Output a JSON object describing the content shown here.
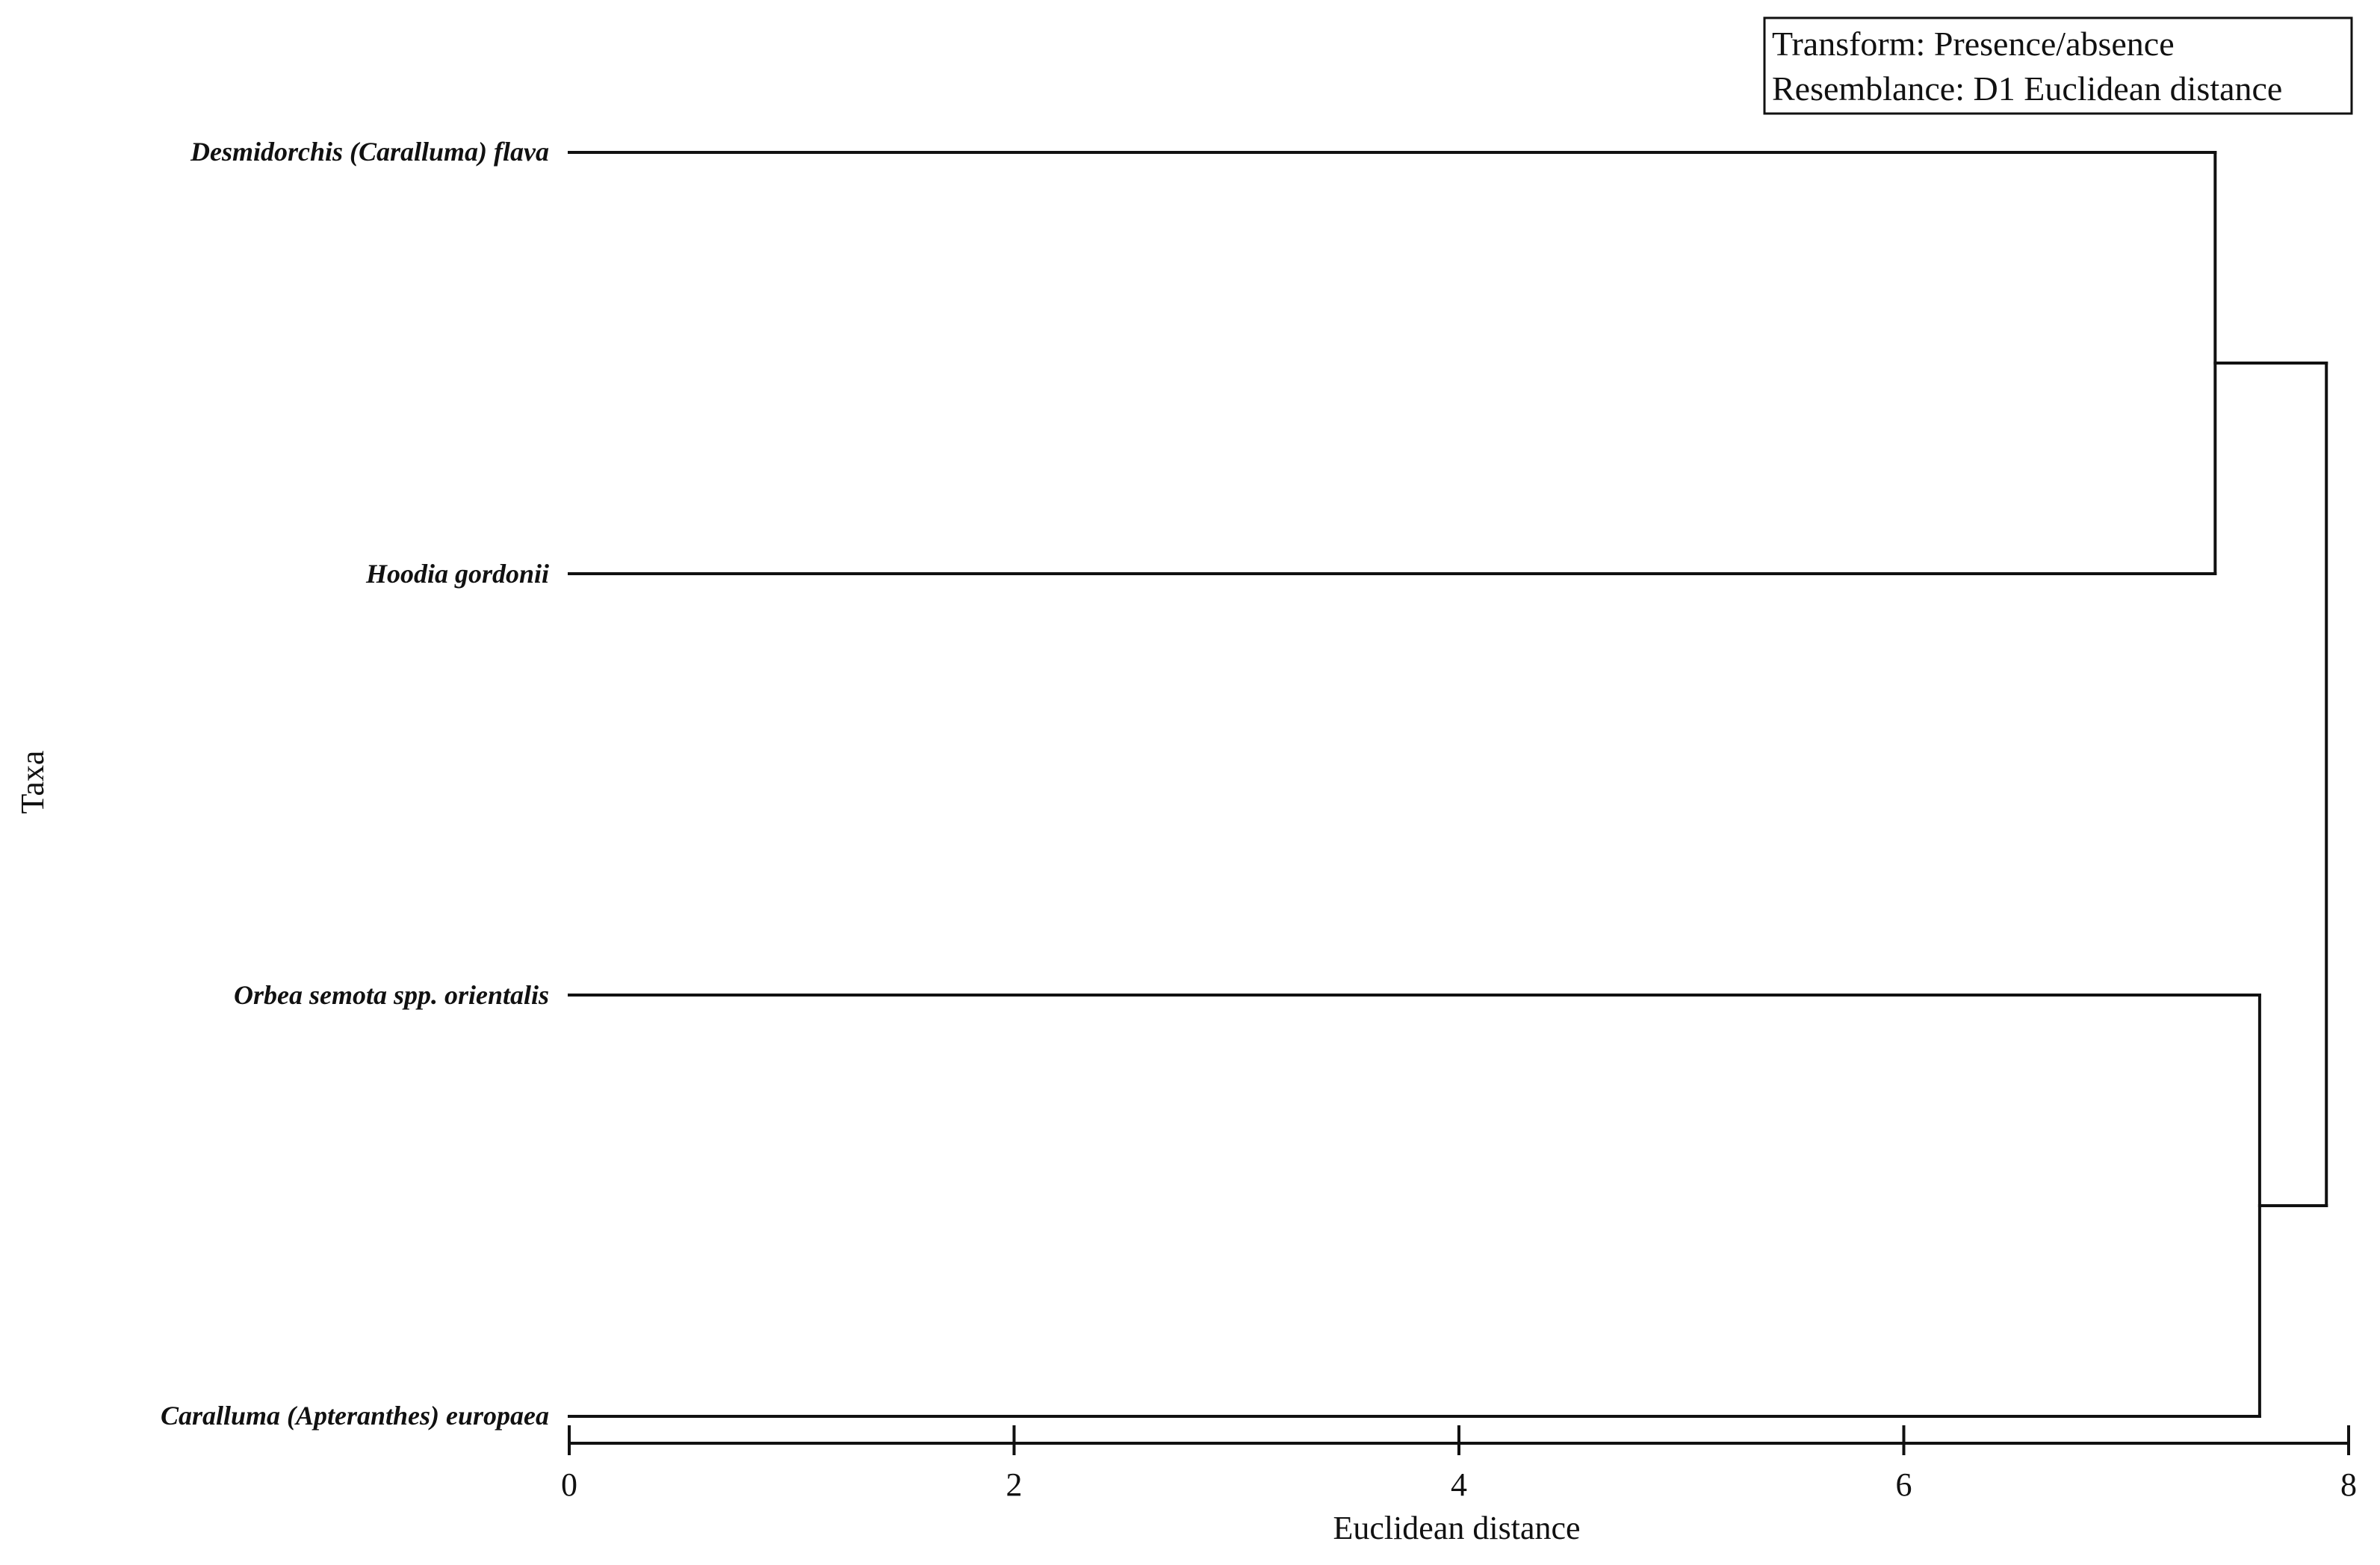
{
  "chart_data": {
    "type": "dendrogram",
    "orientation": "horizontal",
    "legend": {
      "lines": [
        "Transform: Presence/absence",
        "Resemblance: D1 Euclidean distance"
      ],
      "placement": "top-right"
    },
    "ylabel": "Taxa",
    "xlabel": "Euclidean distance",
    "xlim": [
      0,
      8
    ],
    "xticks": [
      0,
      2,
      4,
      6,
      8
    ],
    "leaves": [
      "Desmidorchis (Caralluma) flava",
      "Hoodia gordonii",
      "Orbea semota spp. orientalis",
      "Caralluma (Apteranthes) europaea"
    ],
    "merges": [
      {
        "children": [
          "Desmidorchis (Caralluma) flava",
          "Hoodia gordonii"
        ],
        "distance": 7.4
      },
      {
        "children": [
          "Orbea semota spp. orientalis",
          "Caralluma (Apteranthes) europaea"
        ],
        "distance": 7.6
      },
      {
        "children": [
          "cluster-1",
          "cluster-2"
        ],
        "distance": 7.9
      }
    ]
  }
}
